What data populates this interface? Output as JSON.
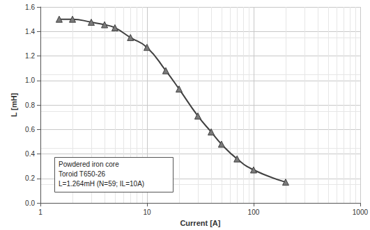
{
  "chart_data": {
    "type": "line",
    "x_label": "Current [A]",
    "y_label": "L [mH]",
    "annotations": [
      "Powdered iron core",
      "Toroid T650-26",
      "L=1.264mH (N=59; IL=10A)"
    ],
    "x": [
      1.5,
      2,
      3,
      4,
      5,
      7,
      10,
      15,
      20,
      30,
      40,
      50,
      70,
      100,
      200
    ],
    "values": [
      1.5,
      1.5,
      1.475,
      1.455,
      1.43,
      1.35,
      1.27,
      1.08,
      0.93,
      0.71,
      0.58,
      0.48,
      0.36,
      0.27,
      0.17
    ],
    "color": "#404040",
    "marker": "triangle",
    "line_style": "solid",
    "log": "x",
    "grid": true,
    "xlim": [
      1,
      1000
    ],
    "xticks": [
      1,
      10,
      100,
      1000
    ],
    "ylim": [
      0,
      1.6
    ],
    "yticks": [
      {
        "value": 0,
        "label": "0.0"
      },
      0.2,
      0.4,
      0.6,
      0.8,
      {
        "value": 1,
        "label": "1.0"
      },
      1.2,
      1.4,
      1.6
    ]
  }
}
